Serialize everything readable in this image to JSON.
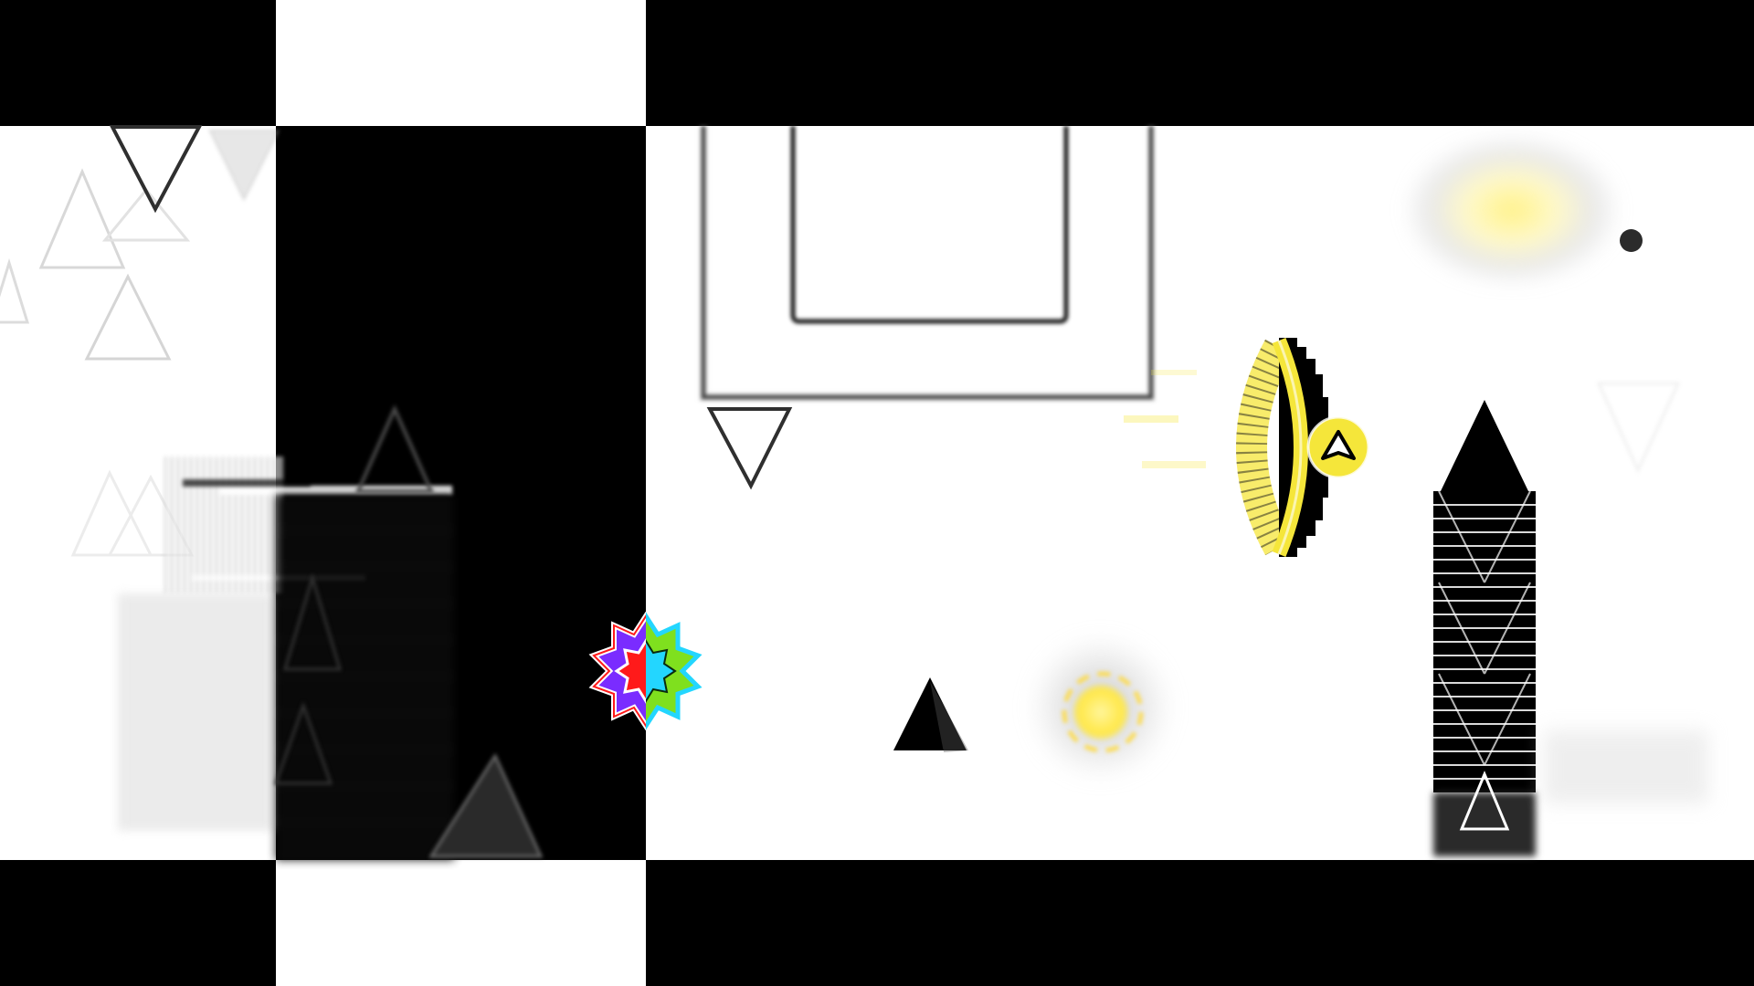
{
  "game": {
    "hud_text": "",
    "colors": {
      "background_light": "#ffffff",
      "background_dark": "#000000",
      "portal_yellow": "#f5e63a",
      "orb_yellow": "#ffe84a",
      "player_purple": "#7a2cff",
      "player_red": "#ff1a1a",
      "player_cyan": "#23d6ff",
      "player_green": "#7fe01e",
      "spike_color": "#000000",
      "outline_gray": "#2f2f2f"
    },
    "icons": {
      "player": "spiky-ball-player-icon",
      "portal": "gravity-portal-icon",
      "orb": "jump-orb-icon",
      "spike": "spike-icon",
      "dot": "small-dot-icon"
    }
  }
}
